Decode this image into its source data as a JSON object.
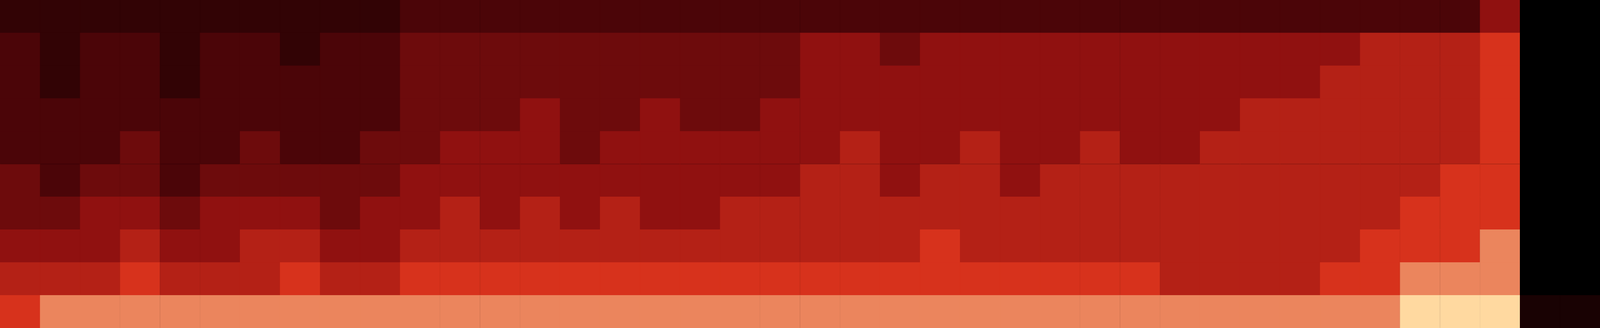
{
  "chart_data": {
    "type": "heatmap",
    "tick_labels": false,
    "grid": false,
    "categories": [
      null,
      null,
      null,
      null,
      null,
      null,
      null,
      null,
      null,
      null,
      null,
      null,
      null,
      null,
      null,
      null,
      null,
      null,
      null,
      null,
      null,
      null,
      null,
      null,
      null,
      null,
      null,
      null,
      null,
      null,
      null,
      null,
      null,
      null,
      null,
      null,
      null,
      null,
      null,
      null
    ],
    "ybins": [
      0,
      1,
      2,
      3,
      4,
      5,
      6,
      7,
      8,
      9,
      10
    ],
    "ylim": [
      0,
      10
    ],
    "zlim": [
      0,
      9
    ],
    "cells": [
      [
        7,
        8,
        8,
        8,
        8,
        8,
        8,
        8,
        8,
        8,
        8,
        8,
        8,
        8,
        8,
        8,
        8,
        8,
        8,
        8,
        8,
        8,
        8,
        8,
        8,
        8,
        8,
        8,
        8,
        8,
        8,
        8,
        8,
        8,
        8,
        9,
        9,
        9,
        1,
        1
      ],
      [
        6,
        6,
        6,
        7,
        6,
        6,
        6,
        7,
        6,
        6,
        7,
        7,
        7,
        7,
        7,
        7,
        7,
        7,
        7,
        7,
        7,
        7,
        7,
        7,
        7,
        7,
        7,
        7,
        7,
        6,
        6,
        6,
        6,
        7,
        7,
        8,
        8,
        8,
        0,
        0
      ],
      [
        5,
        5,
        5,
        6,
        5,
        5,
        6,
        6,
        5,
        5,
        6,
        6,
        6,
        6,
        6,
        6,
        6,
        6,
        6,
        6,
        6,
        6,
        6,
        7,
        6,
        6,
        6,
        6,
        6,
        6,
        6,
        6,
        6,
        6,
        7,
        7,
        7,
        8,
        0,
        0
      ],
      [
        4,
        4,
        5,
        5,
        4,
        5,
        5,
        5,
        4,
        5,
        5,
        6,
        5,
        6,
        5,
        6,
        5,
        5,
        6,
        6,
        6,
        6,
        6,
        6,
        6,
        6,
        6,
        6,
        6,
        6,
        6,
        6,
        6,
        6,
        6,
        7,
        7,
        7,
        0,
        0
      ],
      [
        4,
        3,
        4,
        4,
        3,
        4,
        4,
        4,
        4,
        4,
        5,
        5,
        5,
        5,
        5,
        5,
        5,
        5,
        5,
        5,
        6,
        6,
        5,
        6,
        6,
        5,
        6,
        6,
        6,
        6,
        6,
        6,
        6,
        6,
        6,
        6,
        7,
        7,
        0,
        0
      ],
      [
        3,
        3,
        3,
        4,
        3,
        3,
        4,
        3,
        3,
        4,
        4,
        5,
        5,
        5,
        4,
        5,
        5,
        5,
        5,
        5,
        5,
        6,
        5,
        5,
        6,
        5,
        5,
        6,
        5,
        5,
        6,
        6,
        6,
        6,
        6,
        6,
        6,
        7,
        0,
        0
      ],
      [
        3,
        3,
        3,
        3,
        3,
        3,
        3,
        3,
        3,
        3,
        4,
        4,
        4,
        5,
        4,
        4,
        5,
        4,
        4,
        5,
        5,
        5,
        5,
        5,
        5,
        5,
        5,
        5,
        5,
        5,
        5,
        6,
        6,
        6,
        6,
        6,
        6,
        7,
        0,
        0
      ],
      [
        3,
        2,
        3,
        3,
        2,
        3,
        3,
        3,
        3,
        3,
        4,
        4,
        4,
        4,
        4,
        4,
        4,
        4,
        4,
        4,
        5,
        5,
        5,
        5,
        5,
        5,
        5,
        5,
        5,
        5,
        5,
        5,
        5,
        6,
        6,
        6,
        6,
        7,
        0,
        0
      ],
      [
        3,
        2,
        3,
        3,
        2,
        3,
        3,
        2,
        3,
        3,
        4,
        4,
        4,
        4,
        4,
        4,
        4,
        4,
        4,
        4,
        5,
        5,
        4,
        5,
        5,
        5,
        5,
        5,
        5,
        5,
        5,
        5,
        5,
        5,
        6,
        6,
        6,
        7,
        0,
        0
      ],
      [
        2,
        2,
        2,
        2,
        2,
        2,
        2,
        2,
        2,
        2,
        3,
        3,
        3,
        3,
        3,
        3,
        3,
        3,
        3,
        3,
        3,
        3,
        3,
        3,
        3,
        3,
        3,
        3,
        3,
        3,
        3,
        3,
        3,
        3,
        3,
        3,
        3,
        5,
        0,
        0
      ]
    ]
  }
}
